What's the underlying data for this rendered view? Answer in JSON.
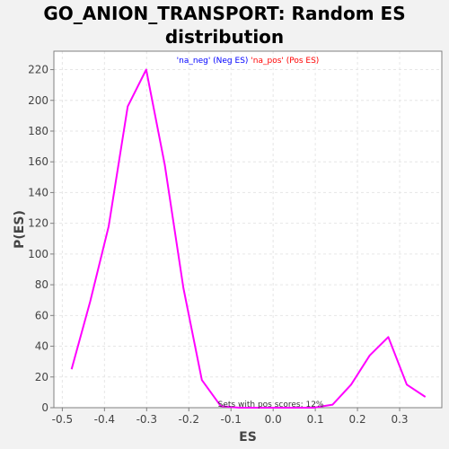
{
  "chart_data": {
    "type": "line",
    "title": "GO_ANION_TRANSPORT: Random ES distribution",
    "title_lines": [
      "GO_ANION_TRANSPORT: Random ES",
      "distribution"
    ],
    "xlabel": "ES",
    "ylabel": "P(ES)",
    "xlim": [
      -0.52,
      0.4
    ],
    "ylim": [
      0,
      232
    ],
    "x_ticks": [
      -0.5,
      -0.4,
      -0.3,
      -0.2,
      -0.1,
      0.0,
      0.1,
      0.2,
      0.3
    ],
    "x_tick_labels": [
      "-0.5",
      "-0.4",
      "-0.3",
      "-0.2",
      "-0.1",
      "0.0",
      "0.1",
      "0.2",
      "0.3"
    ],
    "y_ticks": [
      0,
      20,
      40,
      60,
      80,
      100,
      120,
      140,
      160,
      180,
      200,
      220
    ],
    "y_tick_labels": [
      "0",
      "20",
      "40",
      "60",
      "80",
      "100",
      "120",
      "140",
      "160",
      "180",
      "200",
      "220"
    ],
    "grid": true,
    "legend": {
      "placement": "top-center",
      "entries": [
        {
          "text": "'na_neg' (Neg ES)",
          "color": "#0000ff"
        },
        {
          "text": "'na_pos' (Pos ES)",
          "color": "#ff0000"
        }
      ]
    },
    "annotation": "Sets with pos scores: 12%",
    "series": [
      {
        "color": "#ff00ff",
        "x": [
          -0.478,
          -0.434,
          -0.39,
          -0.345,
          -0.301,
          -0.257,
          -0.213,
          -0.169,
          -0.124,
          -0.08,
          -0.036,
          0.008,
          0.052,
          0.096,
          0.141,
          0.185,
          0.229,
          0.273,
          0.317,
          0.361
        ],
        "y": [
          25,
          69,
          118,
          196,
          220,
          158,
          78,
          18,
          1,
          0,
          0,
          0,
          0,
          0,
          2,
          15,
          34,
          46,
          15,
          7
        ]
      }
    ]
  },
  "colors": {
    "background": "#f2f2f2",
    "plot_background": "#ffffff",
    "grid": "#e6e6e6",
    "axis": "#808080"
  }
}
